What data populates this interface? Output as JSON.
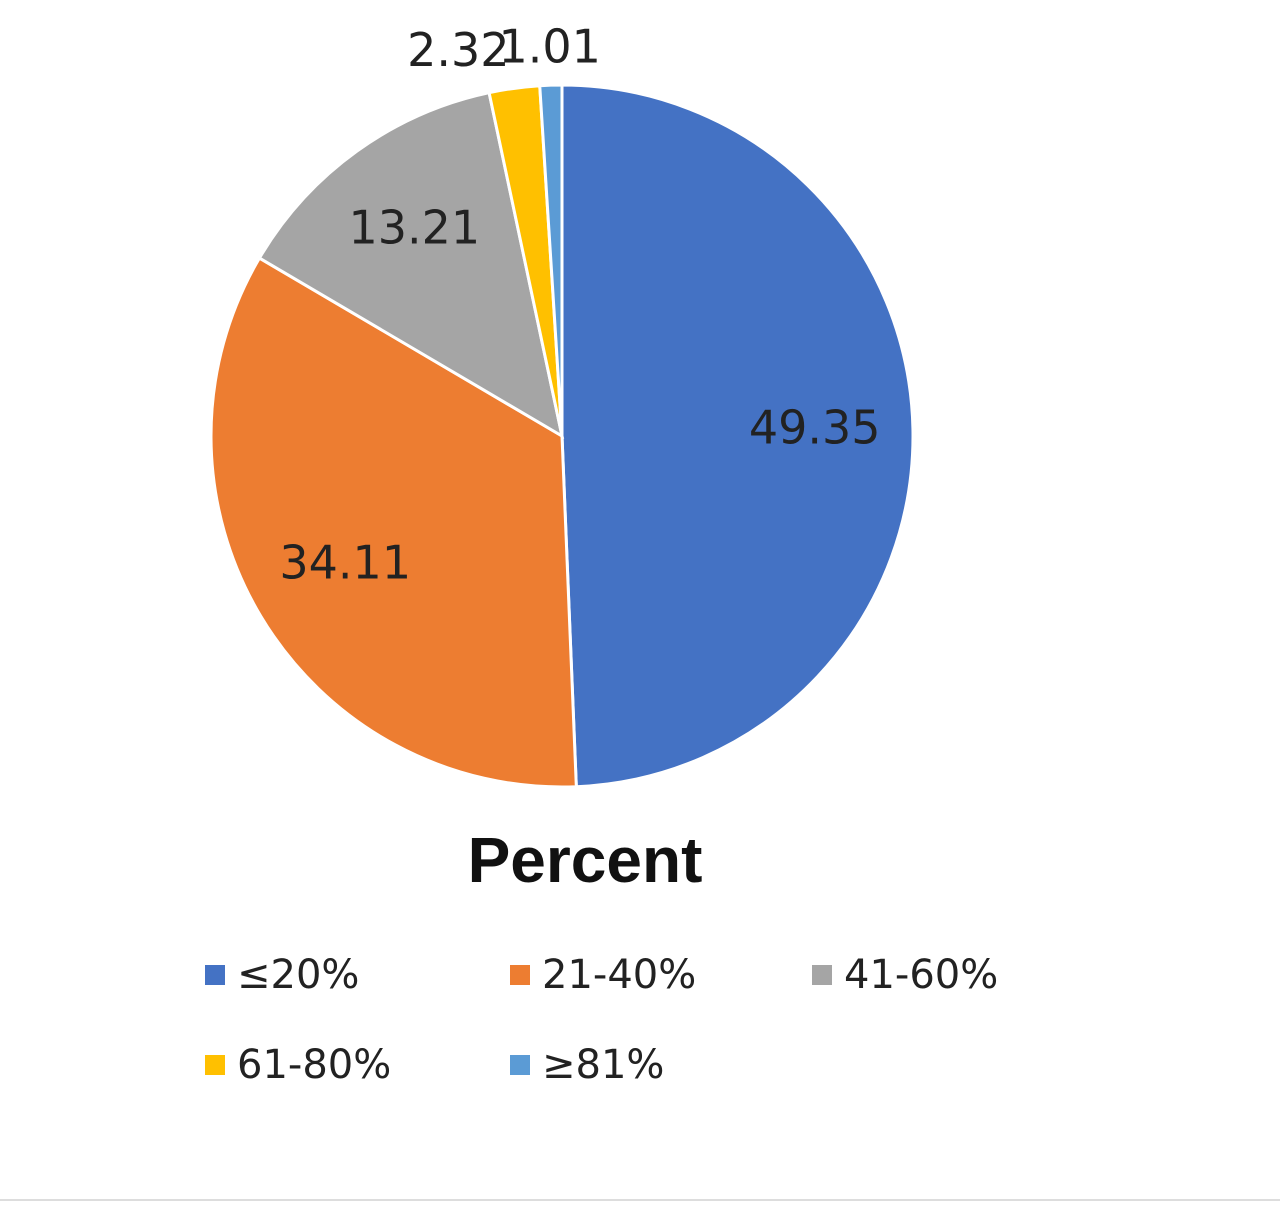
{
  "chart_data": {
    "type": "pie",
    "title": "Percent",
    "categories": [
      "≤20%",
      "21-40%",
      "41-60%",
      "61-80%",
      "≥81%"
    ],
    "values": [
      49.35,
      34.11,
      13.21,
      2.32,
      1.01
    ],
    "colors": [
      "#4472c4",
      "#ed7d31",
      "#a5a5a5",
      "#ffc000",
      "#5b9bd5"
    ],
    "legend": "bottom"
  }
}
